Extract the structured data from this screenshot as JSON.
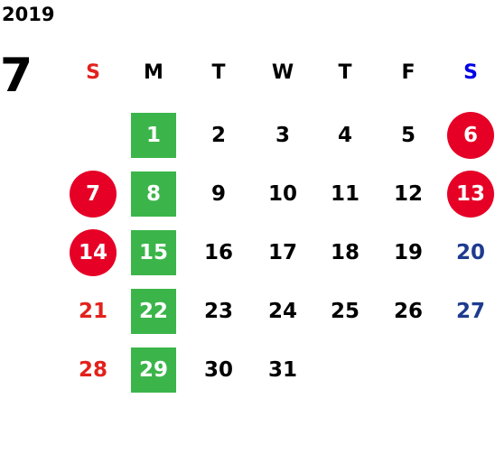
{
  "header": {
    "year": "2019",
    "month": "7"
  },
  "weekdays": [
    "S",
    "M",
    "T",
    "W",
    "T",
    "F",
    "S"
  ],
  "weeks": [
    [
      "1",
      "2",
      "3",
      "4",
      "5",
      {
        "label": "6",
        "circled": true
      }
    ],
    [
      {
        "label": "7",
        "circled": true
      },
      "8",
      "9",
      "10",
      "11",
      "12",
      {
        "label": "13",
        "circled": true
      }
    ],
    [
      {
        "label": "14",
        "circled": true
      },
      "15",
      "16",
      "17",
      "18",
      "19",
      "20"
    ],
    [
      "21",
      "22",
      "23",
      "24",
      "25",
      "26",
      "27"
    ],
    [
      "28",
      "29",
      "30",
      "31"
    ]
  ]
}
